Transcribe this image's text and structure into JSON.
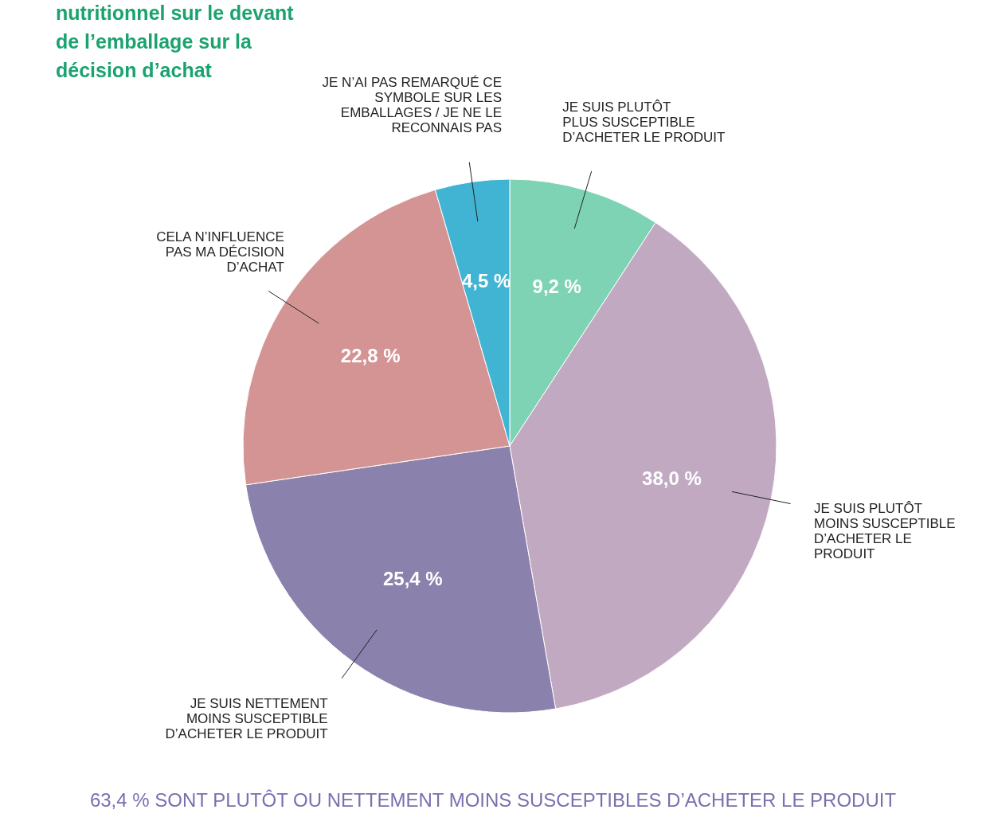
{
  "chart_data": {
    "type": "pie",
    "title": "nutritionnel sur le devant\nde l’emballage sur la\ndécision d’achat",
    "categories": [
      "JE SUIS PLUTÔT\nPLUS SUSCEPTIBLE\nD’ACHETER LE PRODUIT",
      "JE SUIS PLUTÔT\nMOINS SUSCEPTIBLE\nD’ACHETER LE\nPRODUIT",
      "JE SUIS NETTEMENT\nMOINS SUSCEPTIBLE\nD’ACHETER LE PRODUIT",
      "CELA N’INFLUENCE\nPAS MA DÉCISION\nD’ACHAT",
      "JE N’AI PAS REMARQUÉ CE\nSYMBOLE SUR LES\nEMBALLAGES / JE NE LE\nRECONNAIS PAS"
    ],
    "values": [
      9.2,
      38.0,
      25.4,
      22.8,
      4.5
    ],
    "value_labels": [
      "9,2 %",
      "38,0 %",
      "25,4 %",
      "22,8 %",
      "4,5 %"
    ],
    "colors": [
      "#7dd3b4",
      "#c1a9c2",
      "#8b81ad",
      "#d49494",
      "#42b4d3"
    ],
    "annotations": [
      "63,4 % SONT PLUTÔT OU NETTEMENT MOINS SUSCEPTIBLES D’ACHETER LE PRODUIT"
    ]
  }
}
